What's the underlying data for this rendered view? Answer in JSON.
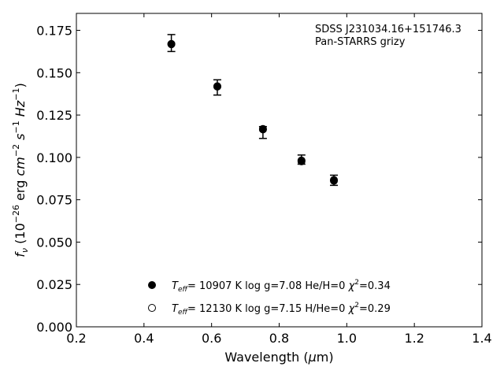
{
  "chart_data": {
    "type": "scatter",
    "annotation_lines": [
      "SDSS J231034.16+151746.3",
      "Pan-STARRS grizy"
    ],
    "xlabel": {
      "main": "Wavelength (",
      "greek": "μ",
      "unit": "m)"
    },
    "ylabel": {
      "symbol": "f",
      "subscript": "ν",
      "open": " (10",
      "exp1": "−26",
      "erg": " erg ",
      "cm": "cm",
      "exp2": "−2",
      "s": " s",
      "exp3": "−1",
      "hz": " Hz",
      "exp4": "−1",
      "close": ")"
    },
    "xlim": [
      0.2,
      1.4
    ],
    "ylim": [
      0.0,
      0.185
    ],
    "x_ticks": [
      0.2,
      0.4,
      0.6,
      0.8,
      1.0,
      1.2,
      1.4
    ],
    "x_tick_labels": [
      "0.2",
      "0.4",
      "0.6",
      "0.8",
      "1.0",
      "1.2",
      "1.4"
    ],
    "y_ticks": [
      0.0,
      0.025,
      0.05,
      0.075,
      0.1,
      0.125,
      0.15,
      0.175
    ],
    "y_tick_labels": [
      "0.000",
      "0.025",
      "0.050",
      "0.075",
      "0.100",
      "0.125",
      "0.150",
      "0.175"
    ],
    "observed": {
      "x": [
        0.481,
        0.617,
        0.752,
        0.866,
        0.962
      ],
      "y": [
        0.1675,
        0.1413,
        0.1147,
        0.0987,
        0.0865
      ],
      "yerr": [
        0.005,
        0.0045,
        0.0035,
        0.0027,
        0.003
      ]
    },
    "series": [
      {
        "marker": "filled",
        "label": {
          "t": "T",
          "sub": "eff",
          "rest": "= 10907 K  log g=7.08  He/H=0  ",
          "chi": "χ",
          "sup": "2",
          "val": "=0.34"
        },
        "x": [
          0.481,
          0.617,
          0.752,
          0.866,
          0.962
        ],
        "y": [
          0.167,
          0.142,
          0.1165,
          0.0977,
          0.0862
        ]
      },
      {
        "marker": "open",
        "label": {
          "t": "T",
          "sub": "eff",
          "rest": "= 12130 K  log g=7.15  H/He=0  ",
          "chi": "χ",
          "sup": "2",
          "val": "=0.29"
        },
        "x": [
          0.481,
          0.617,
          0.752,
          0.866,
          0.962
        ],
        "y": [
          0.1668,
          0.1418,
          0.1168,
          0.0982,
          0.0867
        ]
      }
    ],
    "legend_position": "lower-center",
    "grid": false
  }
}
